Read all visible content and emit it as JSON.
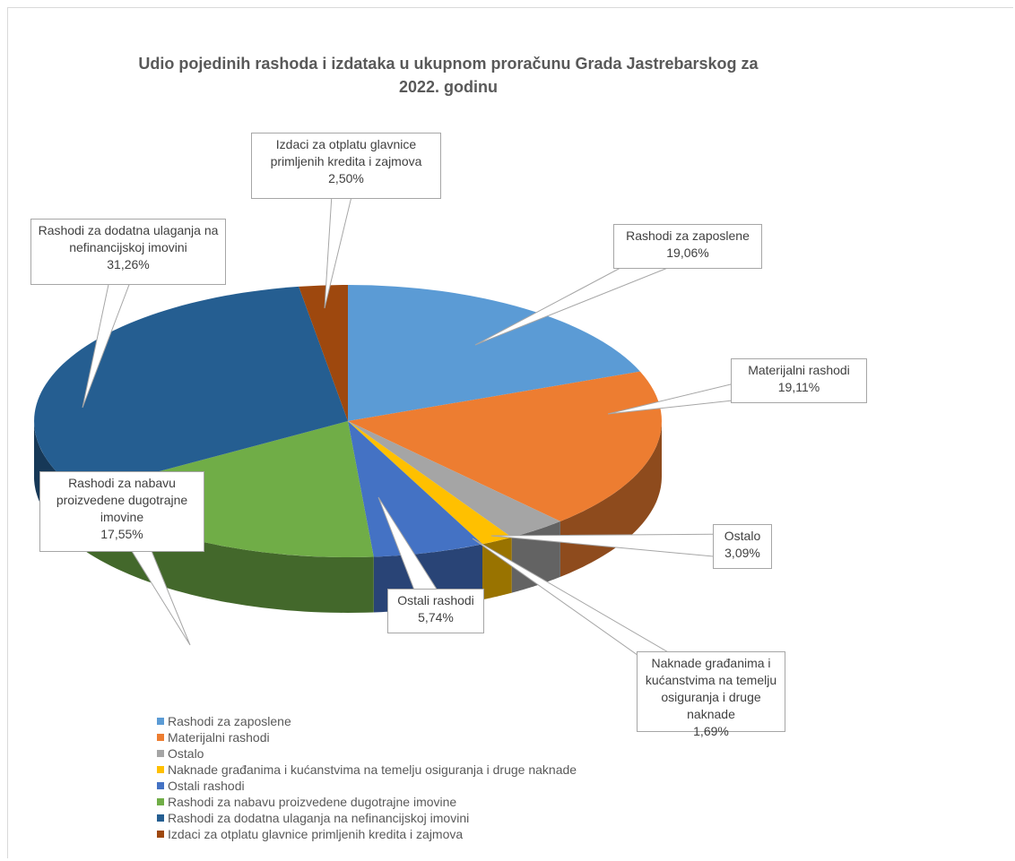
{
  "chart_data": {
    "type": "pie3d",
    "title": "Udio pojedinih rashoda i izdataka u ukupnom proračunu Grada Jastrebarskog za 2022. godinu",
    "categories": [
      "Rashodi za zaposlene",
      "Materijalni rashodi",
      "Ostalo",
      "Naknade građanima i kućanstvima na temelju osiguranja i druge naknade",
      "Ostali rashodi",
      "Rashodi za nabavu proizvedene dugotrajne imovine",
      "Rashodi za dodatna ulaganja na nefinancijskoj imovini",
      "Izdaci za otplatu glavnice primljenih kredita i zajmova"
    ],
    "values": [
      19.06,
      19.11,
      3.09,
      1.69,
      5.74,
      17.55,
      31.26,
      2.5
    ],
    "value_labels": [
      "19,06%",
      "19,11%",
      "3,09%",
      "1,69%",
      "5,74%",
      "17,55%",
      "31,26%",
      "2,50%"
    ],
    "colors": [
      "#5b9bd5",
      "#ed7d31",
      "#a5a5a5",
      "#ffc000",
      "#4472c4",
      "#70ad47",
      "#255e91",
      "#9e480e"
    ],
    "legend": "bottom-left"
  }
}
